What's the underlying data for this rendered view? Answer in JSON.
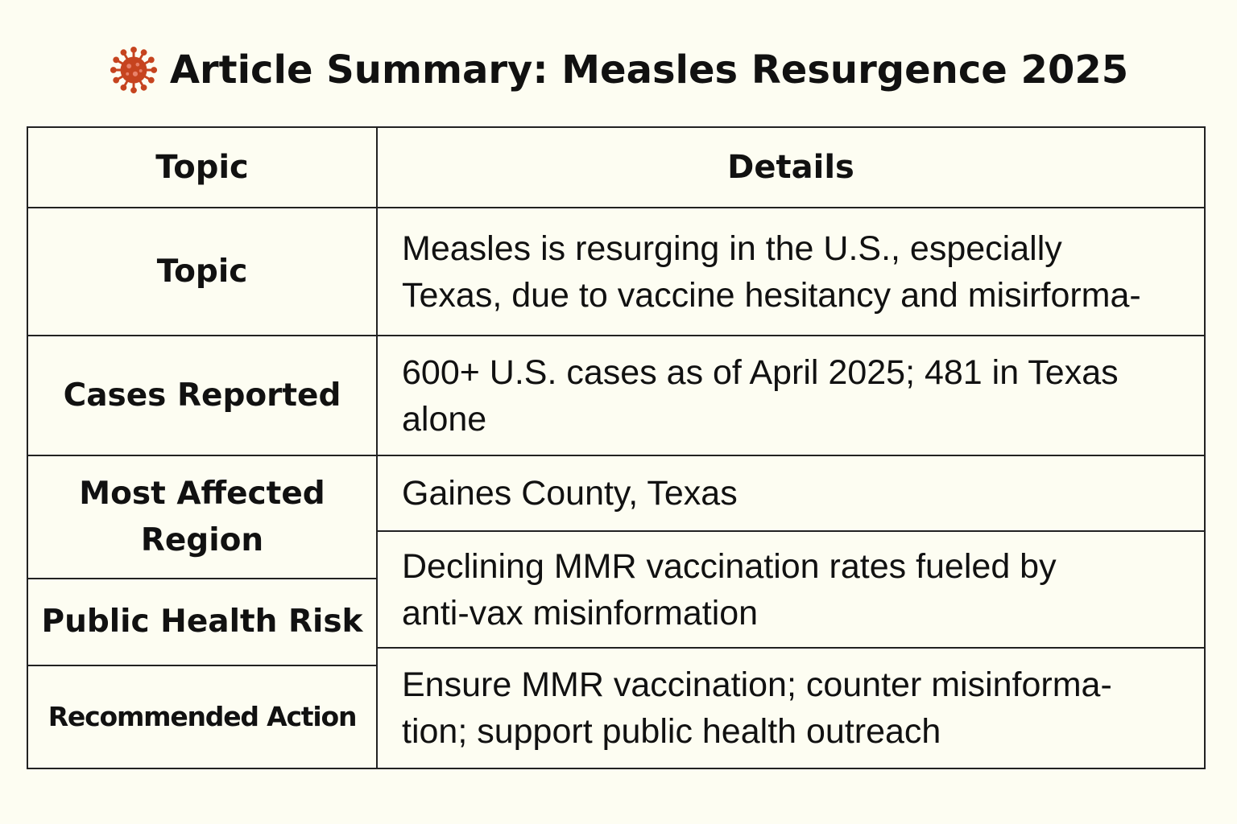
{
  "title": {
    "icon": "virus-icon",
    "icon_color": "#c6441f",
    "text": "Article Summary: Measles Resurgence 2025"
  },
  "table": {
    "header": {
      "topic": "Topic",
      "details": "Details"
    },
    "rows": [
      {
        "label": "Topic",
        "details": "Measles is resurging in the U.S., especially\nTexas, due to vaccine hesitancy and misirforma-"
      },
      {
        "label": "Cases Reported",
        "details": "600+ U.S. cases as of April 2025; 481 in Texas\nalone"
      },
      {
        "label": "Most Affected\nRegion",
        "details": "Gaines County, Texas"
      },
      {
        "label": "Public Health Risk",
        "details": "Declining MMR vaccination rates fueled by\nanti-vax misinformation"
      },
      {
        "label": "Recommended Action",
        "details": "Ensure MMR vaccination; counter misinforma-\ntion; support public health outreach"
      }
    ]
  }
}
